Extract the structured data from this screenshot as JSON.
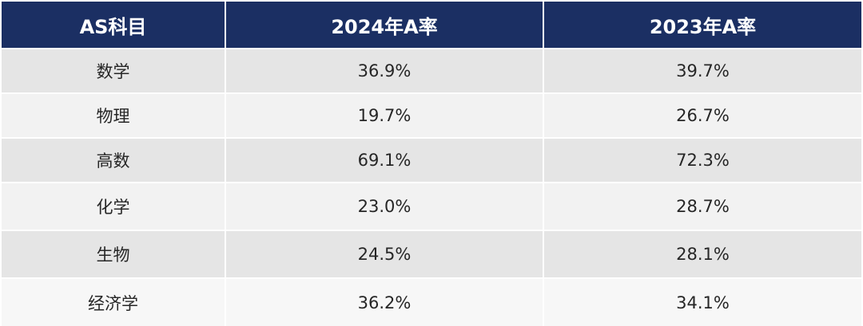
{
  "table": {
    "headers": [
      "AS科目",
      "2024年A率",
      "2023年A率"
    ],
    "rows": [
      [
        "数学",
        "36.9%",
        "39.7%"
      ],
      [
        "物理",
        "19.7%",
        "26.7%"
      ],
      [
        "高数",
        "69.1%",
        "72.3%"
      ],
      [
        "化学",
        "23.0%",
        "28.7%"
      ],
      [
        "生物",
        "24.5%",
        "28.1%"
      ],
      [
        "经济学",
        "36.2%",
        "34.1%"
      ]
    ]
  },
  "colors": {
    "header_bg": "#1b2f63",
    "header_text": "#ffffff",
    "row_dark": "#e5e5e5",
    "row_light": "#f2f2f2"
  }
}
